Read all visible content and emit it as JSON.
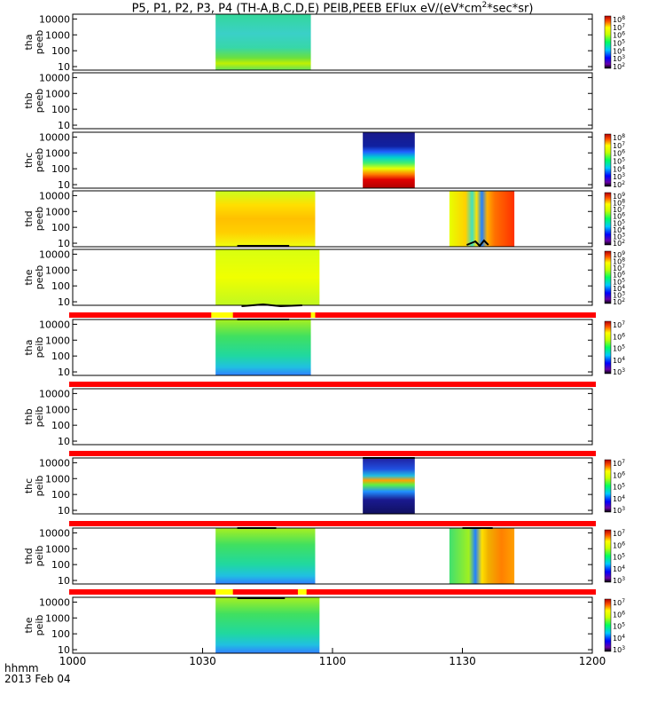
{
  "title_parts": {
    "main": "P5, P1, P2, P3, P4 (TH-A,B,C,D,E) PEIB,PEEB EFlux eV/(eV*cm",
    "sup": "2",
    "tail": "*sec*sr)"
  },
  "x_axis": {
    "ticks": [
      "1000",
      "1030",
      "1100",
      "1130",
      "1200"
    ],
    "corner_label_1": "hhmm",
    "corner_label_2": "2013 Feb 04"
  },
  "colors": {
    "flag_red": "#ff0000",
    "flag_yellow": "#ffff00",
    "trace": "#000000"
  },
  "chart_data": {
    "type": "heatmap",
    "x_range_hhmm": [
      "10:00",
      "12:00"
    ],
    "y_scale": "log",
    "panels": [
      {
        "id": "tha_peeb",
        "ylabel": [
          "tha",
          "peeb"
        ],
        "yticks": [
          "10",
          "100",
          "1000",
          "10000"
        ],
        "colorbar": [
          "10^8",
          "10^7",
          "10^6",
          "10^5",
          "10^4",
          "10^3",
          "10^2"
        ],
        "blocks": [
          {
            "start": "10:33",
            "end": "10:55",
            "profile": "tha_peeb"
          }
        ]
      },
      {
        "id": "thb_peeb",
        "ylabel": [
          "thb",
          "peeb"
        ],
        "yticks": [
          "10",
          "100",
          "1000",
          "10000"
        ],
        "colorbar": [],
        "blocks": []
      },
      {
        "id": "thc_peeb",
        "ylabel": [
          "thc",
          "peeb"
        ],
        "yticks": [
          "10",
          "100",
          "1000",
          "10000"
        ],
        "colorbar": [
          "10^8",
          "10^7",
          "10^6",
          "10^5",
          "10^4",
          "10^3",
          "10^2"
        ],
        "blocks": [
          {
            "start": "11:07",
            "end": "11:19",
            "profile": "thc_peeb"
          }
        ]
      },
      {
        "id": "thd_peeb",
        "ylabel": [
          "thd",
          "peeb"
        ],
        "yticks": [
          "10",
          "100",
          "1000",
          "10000"
        ],
        "colorbar": [
          "10^9",
          "10^8",
          "10^7",
          "10^6",
          "10^5",
          "10^4",
          "10^3",
          "10^2"
        ],
        "blocks": [
          {
            "start": "10:33",
            "end": "10:56",
            "profile": "warm"
          },
          {
            "start": "11:27",
            "end": "11:42",
            "profile": "thd_peeb2"
          }
        ]
      },
      {
        "id": "the_peeb",
        "ylabel": [
          "the",
          "peeb"
        ],
        "yticks": [
          "10",
          "100",
          "1000",
          "10000"
        ],
        "colorbar": [
          "10^9",
          "10^8",
          "10^7",
          "10^6",
          "10^5",
          "10^4",
          "10^3",
          "10^2"
        ],
        "blocks": [
          {
            "start": "10:33",
            "end": "10:57",
            "profile": "yellow"
          }
        ]
      },
      {
        "id": "tha_peib",
        "ylabel": [
          "tha",
          "peib"
        ],
        "yticks": [
          "10",
          "100",
          "1000",
          "10000"
        ],
        "colorbar": [
          "10^7",
          "10^6",
          "10^5",
          "10^4",
          "10^3"
        ],
        "blocks": [
          {
            "start": "10:33",
            "end": "10:55",
            "profile": "ion_green"
          }
        ]
      },
      {
        "id": "thb_peib",
        "ylabel": [
          "thb",
          "peib"
        ],
        "yticks": [
          "10",
          "100",
          "1000",
          "10000"
        ],
        "colorbar": [],
        "blocks": []
      },
      {
        "id": "thc_peib",
        "ylabel": [
          "thc",
          "peib"
        ],
        "yticks": [
          "10",
          "100",
          "1000",
          "10000"
        ],
        "colorbar": [
          "10^7",
          "10^6",
          "10^5",
          "10^4",
          "10^3"
        ],
        "blocks": [
          {
            "start": "11:07",
            "end": "11:19",
            "profile": "thc_peib"
          }
        ]
      },
      {
        "id": "thd_peib",
        "ylabel": [
          "thd",
          "peib"
        ],
        "yticks": [
          "10",
          "100",
          "1000",
          "10000"
        ],
        "colorbar": [
          "10^7",
          "10^6",
          "10^5",
          "10^4",
          "10^3"
        ],
        "blocks": [
          {
            "start": "10:33",
            "end": "10:56",
            "profile": "ion_green"
          },
          {
            "start": "11:27",
            "end": "11:42",
            "profile": "thd_peib2"
          }
        ]
      },
      {
        "id": "the_peib",
        "ylabel": [
          "the",
          "peib"
        ],
        "yticks": [
          "10",
          "100",
          "1000",
          "10000"
        ],
        "colorbar": [
          "10^7",
          "10^6",
          "10^5",
          "10^4",
          "10^3"
        ],
        "blocks": [
          {
            "start": "10:33",
            "end": "10:57",
            "profile": "ion_green"
          }
        ]
      }
    ],
    "flag_bars": [
      {
        "after_panel": 4,
        "yellow": [
          [
            "10:32",
            "10:37"
          ],
          [
            "10:55",
            "10:56"
          ]
        ]
      },
      {
        "after_panel": 5,
        "yellow": []
      },
      {
        "after_panel": 6,
        "yellow": []
      },
      {
        "after_panel": 7,
        "yellow": []
      },
      {
        "after_panel": 8,
        "yellow": [
          [
            "10:33",
            "10:37"
          ],
          [
            "10:52",
            "10:54"
          ]
        ]
      }
    ]
  }
}
